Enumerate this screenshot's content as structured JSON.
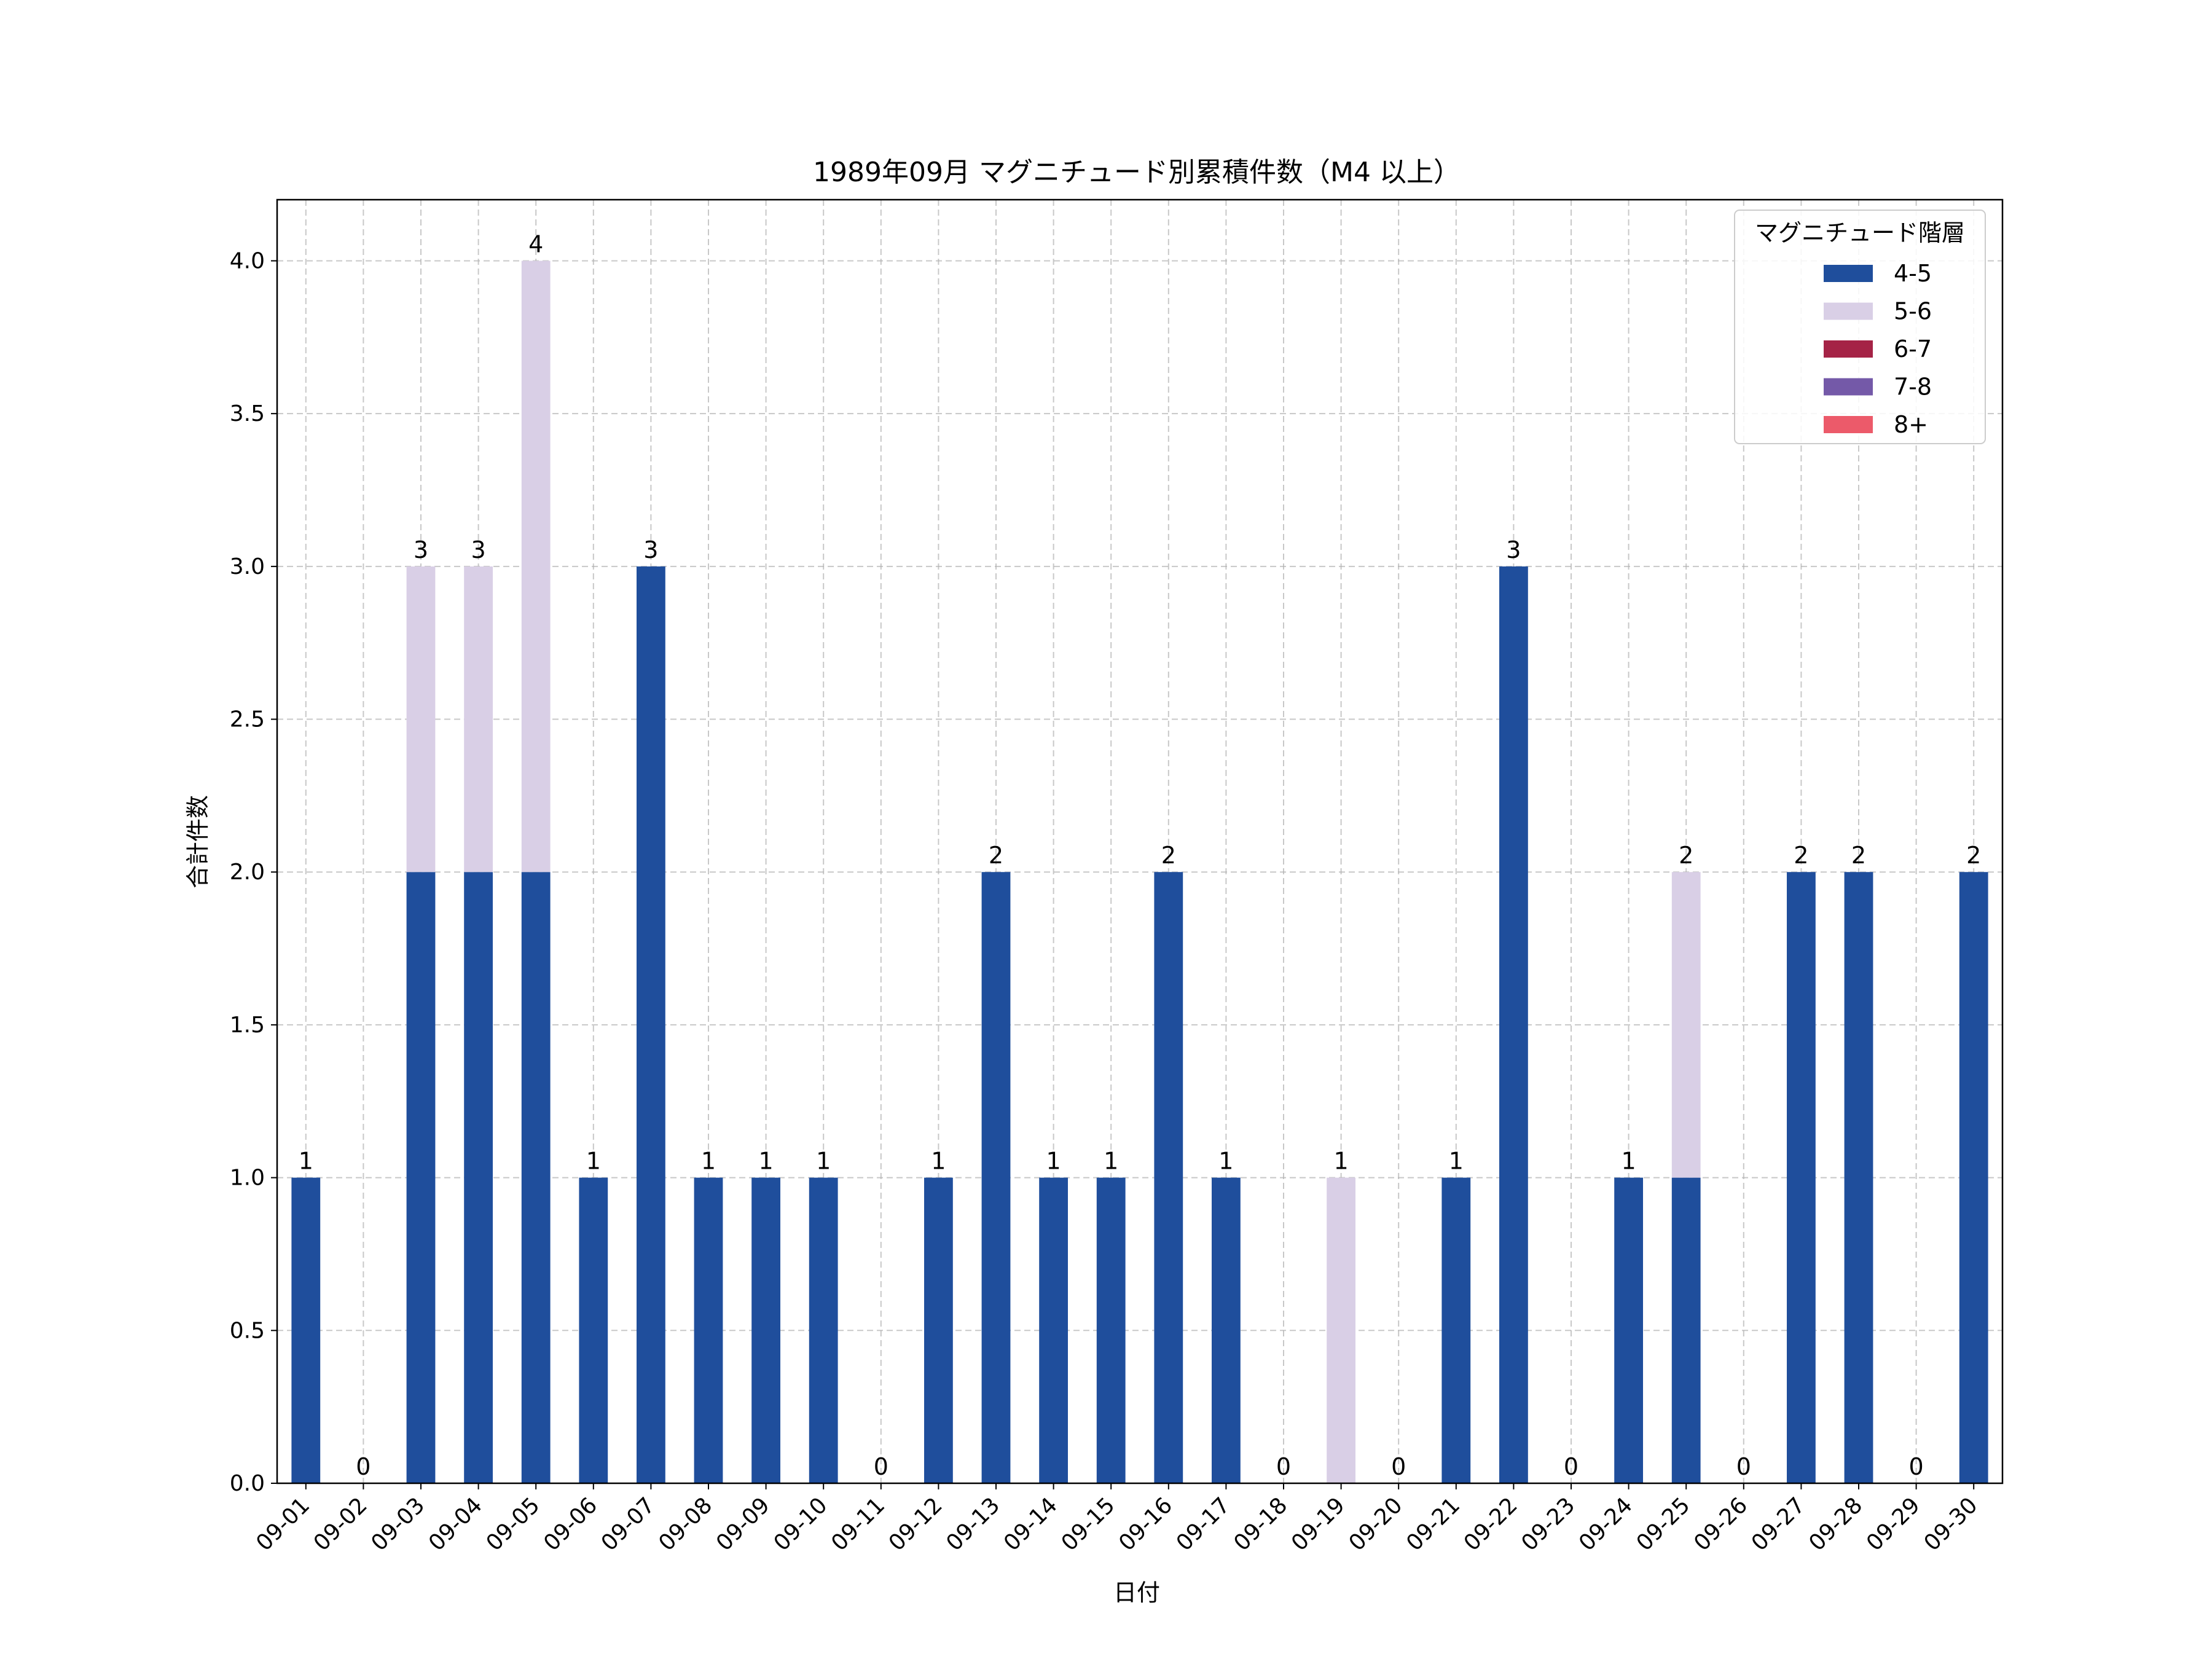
{
  "chart_data": {
    "type": "bar",
    "stacked": true,
    "title": "1989年09月 マグニチュード別累積件数（M4 以上）",
    "xlabel": "日付",
    "ylabel": "合計件数",
    "ylim": [
      0,
      4.2
    ],
    "yticks": [
      "0.0",
      "0.5",
      "1.0",
      "1.5",
      "2.0",
      "2.5",
      "3.0",
      "3.5",
      "4.0"
    ],
    "grid": true,
    "legend": {
      "title": "マグニチュード階層",
      "placement": "top-right"
    },
    "categories": [
      "09-01",
      "09-02",
      "09-03",
      "09-04",
      "09-05",
      "09-06",
      "09-07",
      "09-08",
      "09-09",
      "09-10",
      "09-11",
      "09-12",
      "09-13",
      "09-14",
      "09-15",
      "09-16",
      "09-17",
      "09-18",
      "09-19",
      "09-20",
      "09-21",
      "09-22",
      "09-23",
      "09-24",
      "09-25",
      "09-26",
      "09-27",
      "09-28",
      "09-29",
      "09-30"
    ],
    "series": [
      {
        "name": "4-5",
        "color": "#1f4e9c",
        "values": [
          1,
          0,
          2,
          2,
          2,
          1,
          3,
          1,
          1,
          1,
          0,
          1,
          2,
          1,
          1,
          2,
          1,
          0,
          0,
          0,
          1,
          3,
          0,
          1,
          1,
          0,
          2,
          2,
          0,
          2
        ]
      },
      {
        "name": "5-6",
        "color": "#d9cfe6",
        "values": [
          0,
          0,
          1,
          1,
          2,
          0,
          0,
          0,
          0,
          0,
          0,
          0,
          0,
          0,
          0,
          0,
          0,
          0,
          1,
          0,
          0,
          0,
          0,
          0,
          1,
          0,
          0,
          0,
          0,
          0
        ]
      },
      {
        "name": "6-7",
        "color": "#a52346",
        "values": [
          0,
          0,
          0,
          0,
          0,
          0,
          0,
          0,
          0,
          0,
          0,
          0,
          0,
          0,
          0,
          0,
          0,
          0,
          0,
          0,
          0,
          0,
          0,
          0,
          0,
          0,
          0,
          0,
          0,
          0
        ]
      },
      {
        "name": "7-8",
        "color": "#7459a8",
        "values": [
          0,
          0,
          0,
          0,
          0,
          0,
          0,
          0,
          0,
          0,
          0,
          0,
          0,
          0,
          0,
          0,
          0,
          0,
          0,
          0,
          0,
          0,
          0,
          0,
          0,
          0,
          0,
          0,
          0,
          0
        ]
      },
      {
        "name": "8+",
        "color": "#ec5a6a",
        "values": [
          0,
          0,
          0,
          0,
          0,
          0,
          0,
          0,
          0,
          0,
          0,
          0,
          0,
          0,
          0,
          0,
          0,
          0,
          0,
          0,
          0,
          0,
          0,
          0,
          0,
          0,
          0,
          0,
          0,
          0
        ]
      }
    ],
    "totals": [
      "1",
      "0",
      "3",
      "3",
      "4",
      "1",
      "3",
      "1",
      "1",
      "1",
      "0",
      "1",
      "2",
      "1",
      "1",
      "2",
      "1",
      "0",
      "1",
      "0",
      "1",
      "3",
      "0",
      "1",
      "2",
      "0",
      "2",
      "2",
      "0",
      "2"
    ]
  }
}
